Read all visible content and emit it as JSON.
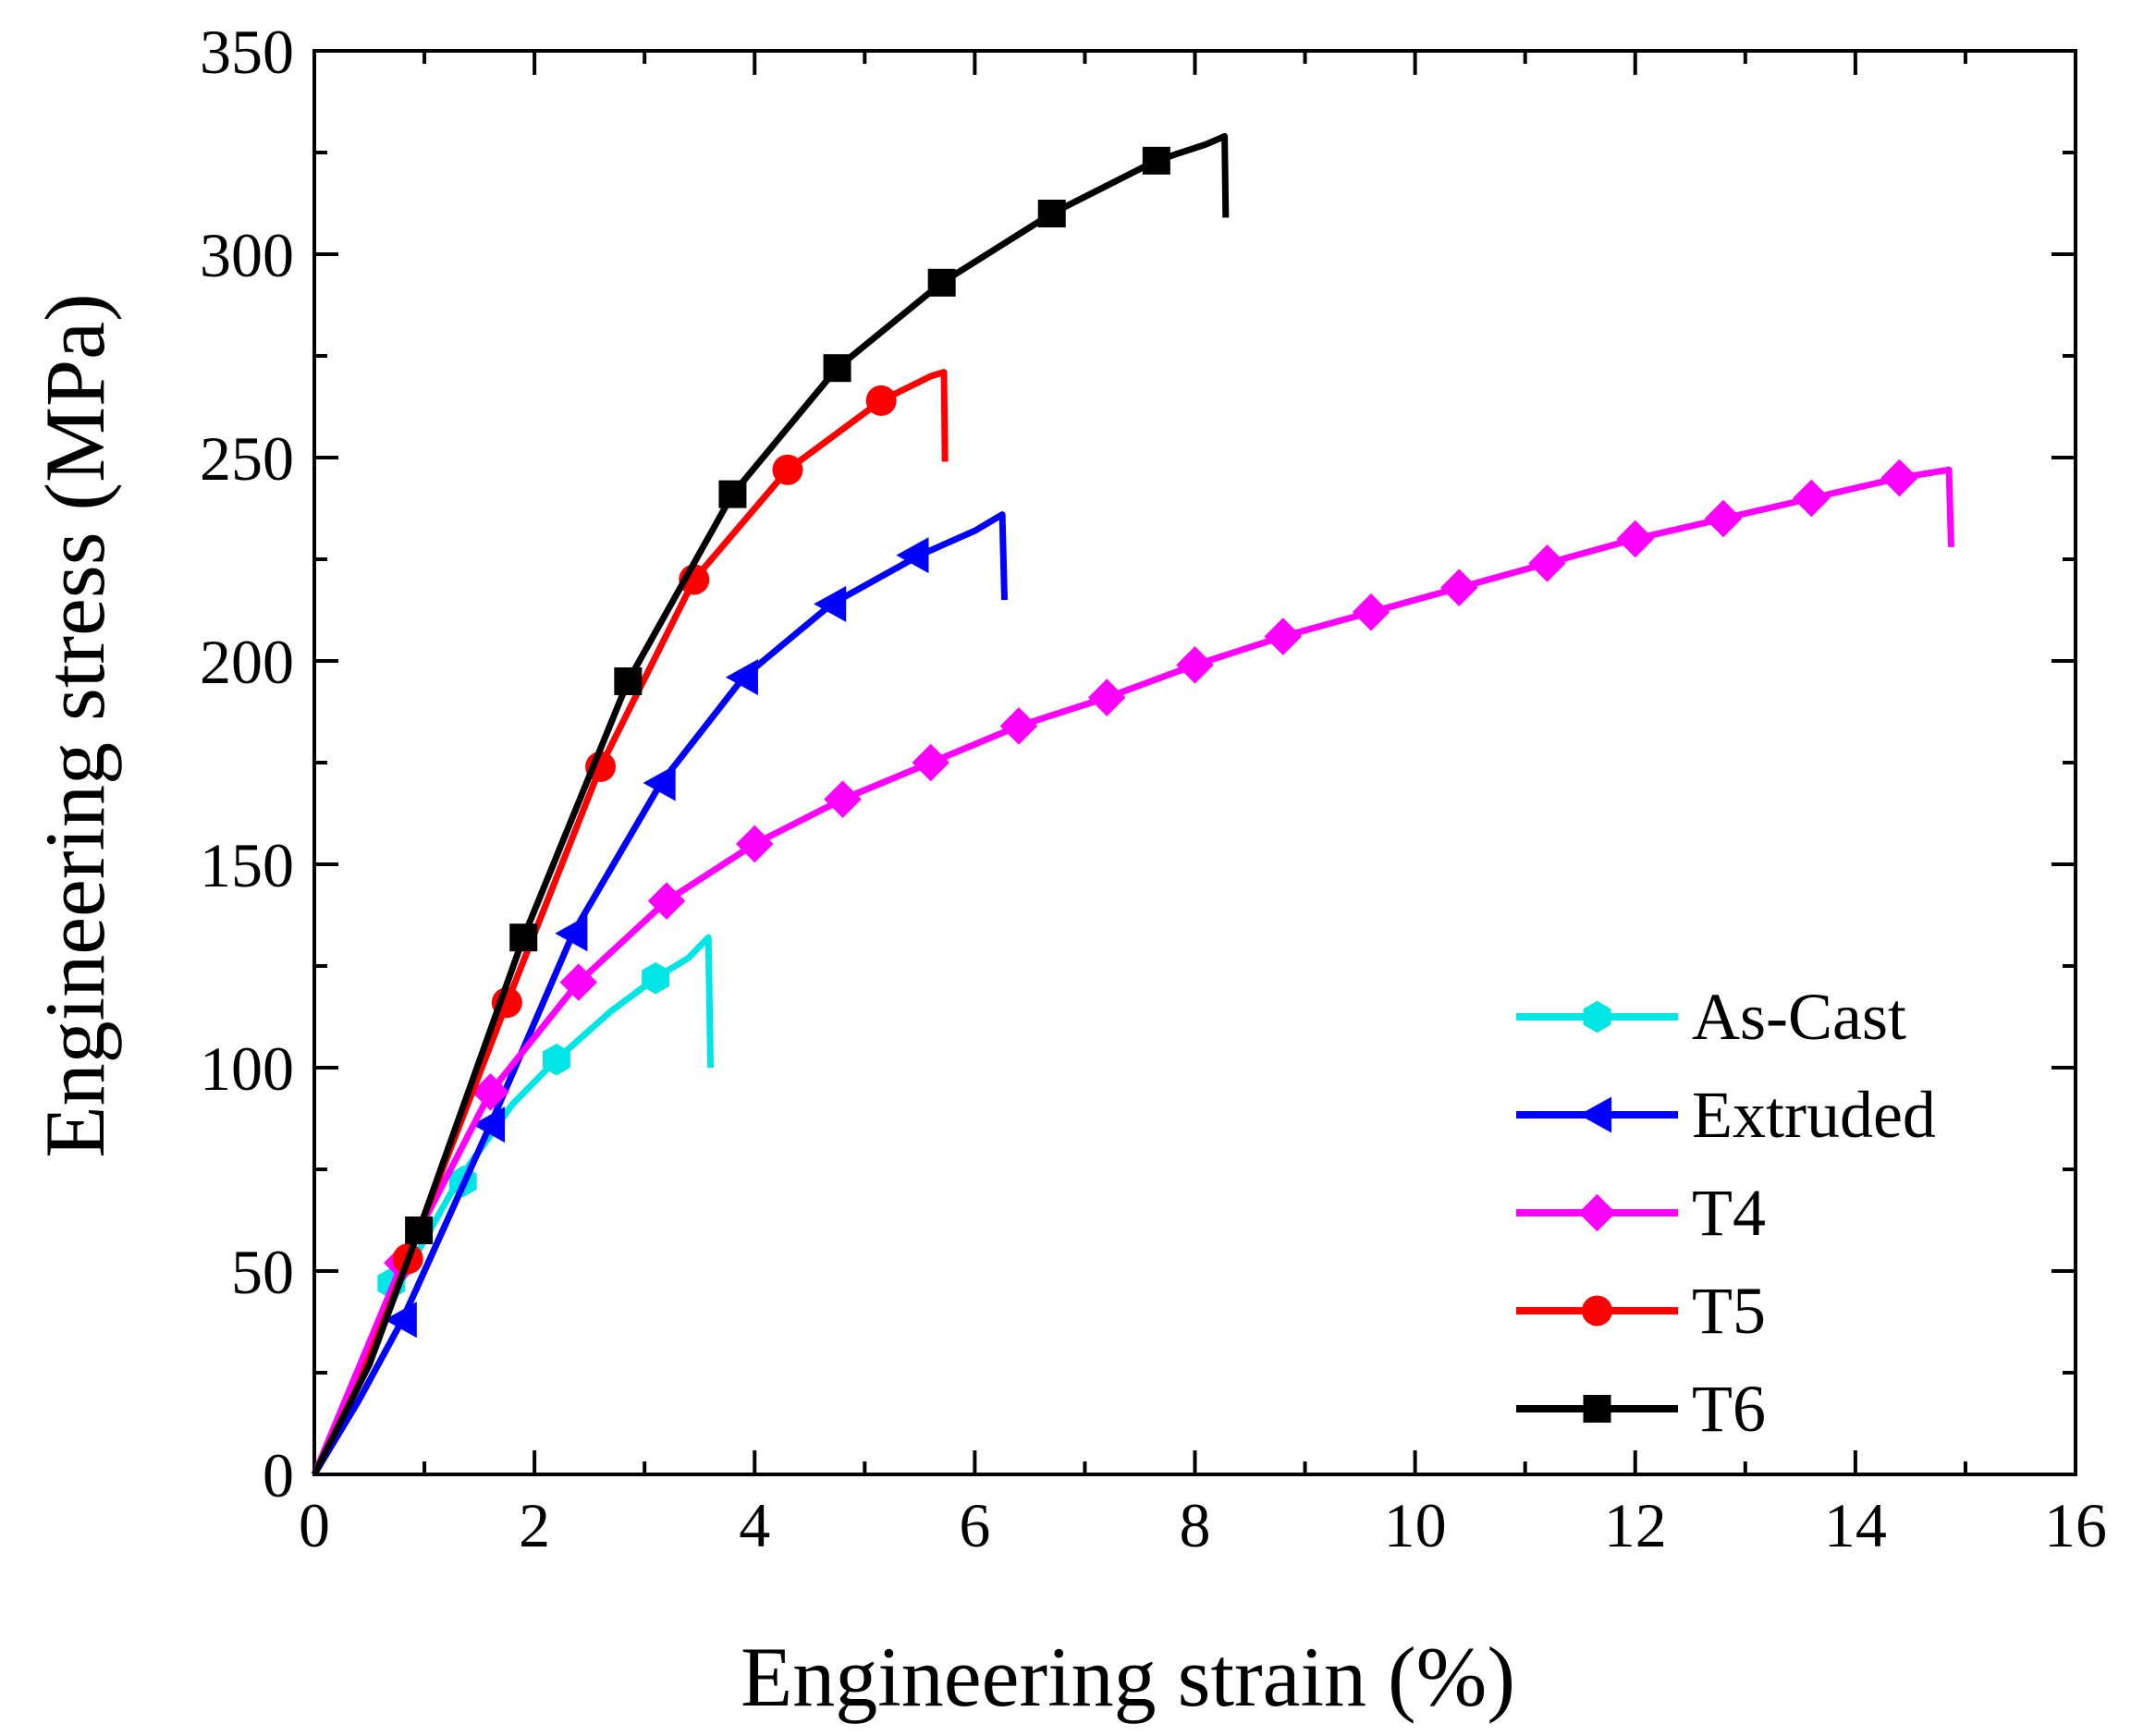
{
  "chart_data": {
    "type": "line",
    "xlabel": "Engineering strain (%)",
    "ylabel": "Engineering stress (MPa)",
    "xlim": [
      0,
      16
    ],
    "ylim": [
      0,
      350
    ],
    "x_ticks": [
      0,
      2,
      4,
      6,
      8,
      10,
      12,
      14,
      16
    ],
    "x_tick_labels": [
      "0",
      "2",
      "4",
      "6",
      "8",
      "10",
      "12",
      "14",
      "16"
    ],
    "y_ticks": [
      0,
      50,
      100,
      150,
      200,
      250,
      300,
      350
    ],
    "y_tick_labels": [
      "0",
      "50",
      "100",
      "150",
      "200",
      "250",
      "300",
      "350"
    ],
    "grid": false,
    "legend_position": "bottom-right",
    "series": [
      {
        "name": "As-Cast",
        "color": "#00e5e5",
        "marker": "hexagon",
        "x": [
          0,
          0.4,
          0.8,
          1.3,
          1.8,
          2.2,
          2.7,
          3.1,
          3.4,
          3.58,
          3.6
        ],
        "y": [
          0,
          24,
          48,
          72,
          91,
          102,
          114,
          122,
          127,
          132,
          100
        ],
        "marker_x": [
          0.7,
          1.35,
          2.2,
          3.1
        ],
        "marker_y": [
          47,
          72,
          102,
          122
        ]
      },
      {
        "name": "Extruded",
        "color": "#0000ff",
        "marker": "triangle-left",
        "x": [
          0,
          0.4,
          0.8,
          1.6,
          2.35,
          3.15,
          3.9,
          4.7,
          5.5,
          6.0,
          6.25,
          6.27
        ],
        "y": [
          0,
          18,
          38,
          86,
          133,
          170,
          196,
          214,
          226,
          232,
          236,
          215
        ],
        "marker_x": [
          0.8,
          1.6,
          2.35,
          3.15,
          3.9,
          4.7,
          5.45
        ],
        "marker_y": [
          38,
          86,
          133,
          170,
          196,
          214,
          226
        ]
      },
      {
        "name": "T4",
        "color": "#ff00ff",
        "marker": "diamond",
        "x": [
          0,
          0.8,
          1.6,
          2.4,
          3.2,
          4.0,
          4.8,
          5.6,
          6.4,
          7.2,
          8.0,
          8.8,
          9.6,
          10.4,
          11.2,
          12.0,
          12.8,
          13.6,
          14.4,
          14.85,
          14.87
        ],
        "y": [
          0,
          52,
          94,
          121,
          141,
          155,
          166,
          175,
          184,
          191,
          199,
          206,
          212,
          218,
          224,
          230,
          235,
          240,
          245,
          247,
          228
        ],
        "marker_x": [
          0.8,
          1.6,
          2.4,
          3.2,
          4.0,
          4.8,
          5.6,
          6.4,
          7.2,
          8.0,
          8.8,
          9.6,
          10.4,
          11.2,
          12.0,
          12.8,
          13.6,
          14.4
        ],
        "marker_y": [
          52,
          94,
          121,
          141,
          155,
          166,
          175,
          184,
          191,
          199,
          206,
          212,
          218,
          224,
          230,
          235,
          240,
          245
        ]
      },
      {
        "name": "T5",
        "color": "#ff0000",
        "marker": "circle",
        "x": [
          0,
          0.4,
          0.85,
          1.75,
          2.6,
          3.45,
          4.3,
          5.15,
          5.6,
          5.72,
          5.73
        ],
        "y": [
          0,
          22,
          53,
          116,
          174,
          220,
          247,
          264,
          270,
          271,
          249
        ],
        "marker_x": [
          0.85,
          1.75,
          2.6,
          3.45,
          4.3,
          5.15
        ],
        "marker_y": [
          53,
          116,
          174,
          220,
          247,
          264
        ]
      },
      {
        "name": "T6",
        "color": "#000000",
        "marker": "square",
        "x": [
          0,
          0.5,
          0.95,
          1.9,
          2.85,
          3.8,
          4.75,
          5.7,
          6.7,
          7.65,
          8.1,
          8.27,
          8.28
        ],
        "y": [
          0,
          27,
          60,
          132,
          195,
          241,
          272,
          293,
          310,
          323,
          327,
          329,
          309
        ],
        "marker_x": [
          0.95,
          1.9,
          2.85,
          3.8,
          4.75,
          5.7,
          6.7,
          7.65
        ],
        "marker_y": [
          60,
          132,
          195,
          241,
          272,
          293,
          310,
          323
        ]
      }
    ]
  }
}
